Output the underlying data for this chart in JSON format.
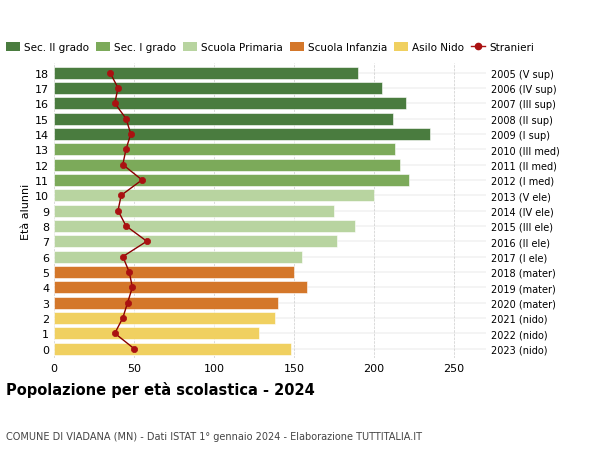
{
  "ages": [
    18,
    17,
    16,
    15,
    14,
    13,
    12,
    11,
    10,
    9,
    8,
    7,
    6,
    5,
    4,
    3,
    2,
    1,
    0
  ],
  "right_labels": [
    "2005 (V sup)",
    "2006 (IV sup)",
    "2007 (III sup)",
    "2008 (II sup)",
    "2009 (I sup)",
    "2010 (III med)",
    "2011 (II med)",
    "2012 (I med)",
    "2013 (V ele)",
    "2014 (IV ele)",
    "2015 (III ele)",
    "2016 (II ele)",
    "2017 (I ele)",
    "2018 (mater)",
    "2019 (mater)",
    "2020 (mater)",
    "2021 (nido)",
    "2022 (nido)",
    "2023 (nido)"
  ],
  "bar_values": [
    190,
    205,
    220,
    212,
    235,
    213,
    216,
    222,
    200,
    175,
    188,
    177,
    155,
    150,
    158,
    140,
    138,
    128,
    148
  ],
  "bar_colors": [
    "#4a7c3f",
    "#4a7c3f",
    "#4a7c3f",
    "#4a7c3f",
    "#4a7c3f",
    "#7caa5a",
    "#7caa5a",
    "#7caa5a",
    "#b8d4a0",
    "#b8d4a0",
    "#b8d4a0",
    "#b8d4a0",
    "#b8d4a0",
    "#d4772a",
    "#d4772a",
    "#d4772a",
    "#f0d060",
    "#f0d060",
    "#f0d060"
  ],
  "stranieri_values": [
    35,
    40,
    38,
    45,
    48,
    45,
    43,
    55,
    42,
    40,
    45,
    58,
    43,
    47,
    49,
    46,
    43,
    38,
    50
  ],
  "legend_labels": [
    "Sec. II grado",
    "Sec. I grado",
    "Scuola Primaria",
    "Scuola Infanzia",
    "Asilo Nido",
    "Stranieri"
  ],
  "legend_colors": [
    "#4a7c3f",
    "#7caa5a",
    "#b8d4a0",
    "#d4772a",
    "#f0d060",
    "#aa1111"
  ],
  "title": "Popolazione per età scolastica - 2024",
  "subtitle": "COMUNE DI VIADANA (MN) - Dati ISTAT 1° gennaio 2024 - Elaborazione TUTTITALIA.IT",
  "ylabel_left": "Età alunni",
  "xlim": [
    0,
    270
  ],
  "xticks": [
    0,
    50,
    100,
    150,
    200,
    250
  ],
  "bar_height": 0.78,
  "grid_color": "#cccccc"
}
